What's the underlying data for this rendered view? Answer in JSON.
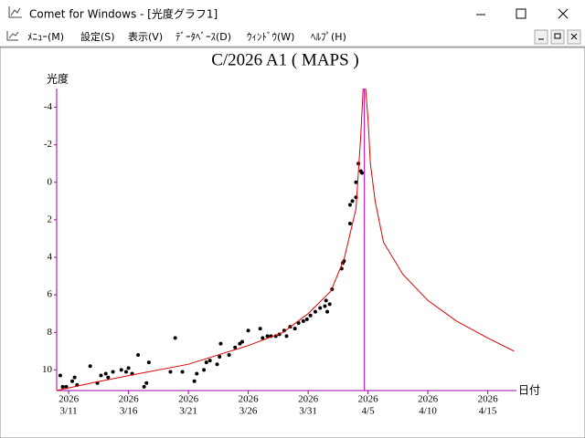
{
  "window": {
    "title": "Comet for Windows - [光度グラフ1]",
    "menu": [
      "ﾒﾆｭｰ(M)",
      "設定(S)",
      "表示(V)",
      "ﾃﾞｰﾀﾍﾞｰｽ(D)",
      "ｳｨﾝﾄﾞｳ(W)",
      "ﾍﾙﾌﾟ(H)"
    ]
  },
  "chart_data": {
    "type": "scatter",
    "title": "C/2026 A1 ( MAPS )",
    "y_label": "光度",
    "x_label": "日付",
    "xlim": [
      10,
      48.4
    ],
    "ylim": [
      -5,
      11.1
    ],
    "y_inverted": true,
    "grid": false,
    "axis_color": "#a000a0",
    "xtick_year": "2026",
    "xticks": [
      {
        "value": 11,
        "label": "3/11"
      },
      {
        "value": 16,
        "label": "3/16"
      },
      {
        "value": 21,
        "label": "3/21"
      },
      {
        "value": 26,
        "label": "3/26"
      },
      {
        "value": 31,
        "label": "3/31"
      },
      {
        "value": 36,
        "label": "4/5"
      },
      {
        "value": 41,
        "label": "4/10"
      },
      {
        "value": 46,
        "label": "4/15"
      }
    ],
    "yticks": [
      -4,
      -2,
      0,
      2,
      4,
      6,
      8,
      10
    ],
    "vline": {
      "x": 35.7,
      "color": "#c000c0"
    },
    "series": [
      {
        "type": "scatter",
        "color": "#000000",
        "x": [
          10.3,
          10.5,
          10.8,
          11.3,
          11.5,
          11.7,
          12.8,
          13.4,
          13.7,
          14.1,
          14.3,
          14.7,
          15.4,
          15.8,
          16.0,
          16.3,
          16.8,
          17.3,
          17.5,
          17.7,
          19.5,
          19.9,
          20.5,
          21.5,
          21.7,
          22.3,
          22.5,
          22.8,
          23.4,
          23.6,
          23.7,
          24.4,
          24.9,
          25.3,
          25.5,
          26.0,
          27.0,
          27.2,
          27.6,
          27.9,
          28.3,
          28.6,
          29.0,
          29.2,
          29.5,
          29.9,
          30.2,
          30.6,
          30.9,
          31.2,
          31.6,
          32.0,
          32.4,
          32.6,
          32.5,
          32.8,
          33.0,
          33.8,
          33.9,
          34.0,
          34.5,
          34.5,
          34.7,
          35.0,
          35.0,
          35.2,
          35.4,
          35.5
        ],
        "values": [
          10.3,
          10.9,
          10.9,
          10.6,
          10.4,
          10.8,
          9.8,
          10.7,
          10.3,
          10.2,
          10.4,
          10.1,
          10.0,
          10.1,
          9.9,
          10.2,
          9.2,
          10.9,
          10.7,
          9.6,
          10.1,
          8.3,
          10.1,
          10.6,
          10.2,
          10.0,
          9.6,
          9.5,
          9.7,
          9.3,
          8.6,
          9.2,
          8.8,
          8.6,
          8.5,
          7.9,
          7.8,
          8.3,
          8.2,
          8.2,
          8.2,
          8.1,
          7.9,
          8.2,
          7.7,
          7.8,
          7.5,
          7.4,
          7.3,
          7.1,
          6.9,
          6.7,
          6.6,
          6.9,
          6.3,
          6.5,
          5.7,
          4.6,
          4.3,
          4.2,
          2.2,
          1.2,
          1.0,
          0.8,
          0.0,
          -1.0,
          -0.6,
          -0.5
        ]
      },
      {
        "type": "line",
        "color": "#e00000",
        "x": [
          10.0,
          12.9,
          16.0,
          21.0,
          26.0,
          28.9,
          31.0,
          32.9,
          34.0,
          35.0,
          35.4,
          35.6,
          null,
          35.8,
          36.0,
          36.2,
          36.6,
          37.3,
          38.9,
          41.0,
          43.4,
          46.0,
          48.2
        ],
        "values": [
          11.1,
          10.7,
          10.3,
          9.7,
          8.7,
          8.0,
          7.0,
          5.8,
          4.1,
          1.4,
          -2.5,
          -5,
          null,
          -5,
          -3.4,
          -1.0,
          1.0,
          3.2,
          4.9,
          6.3,
          7.4,
          8.3,
          9.0
        ]
      }
    ]
  }
}
